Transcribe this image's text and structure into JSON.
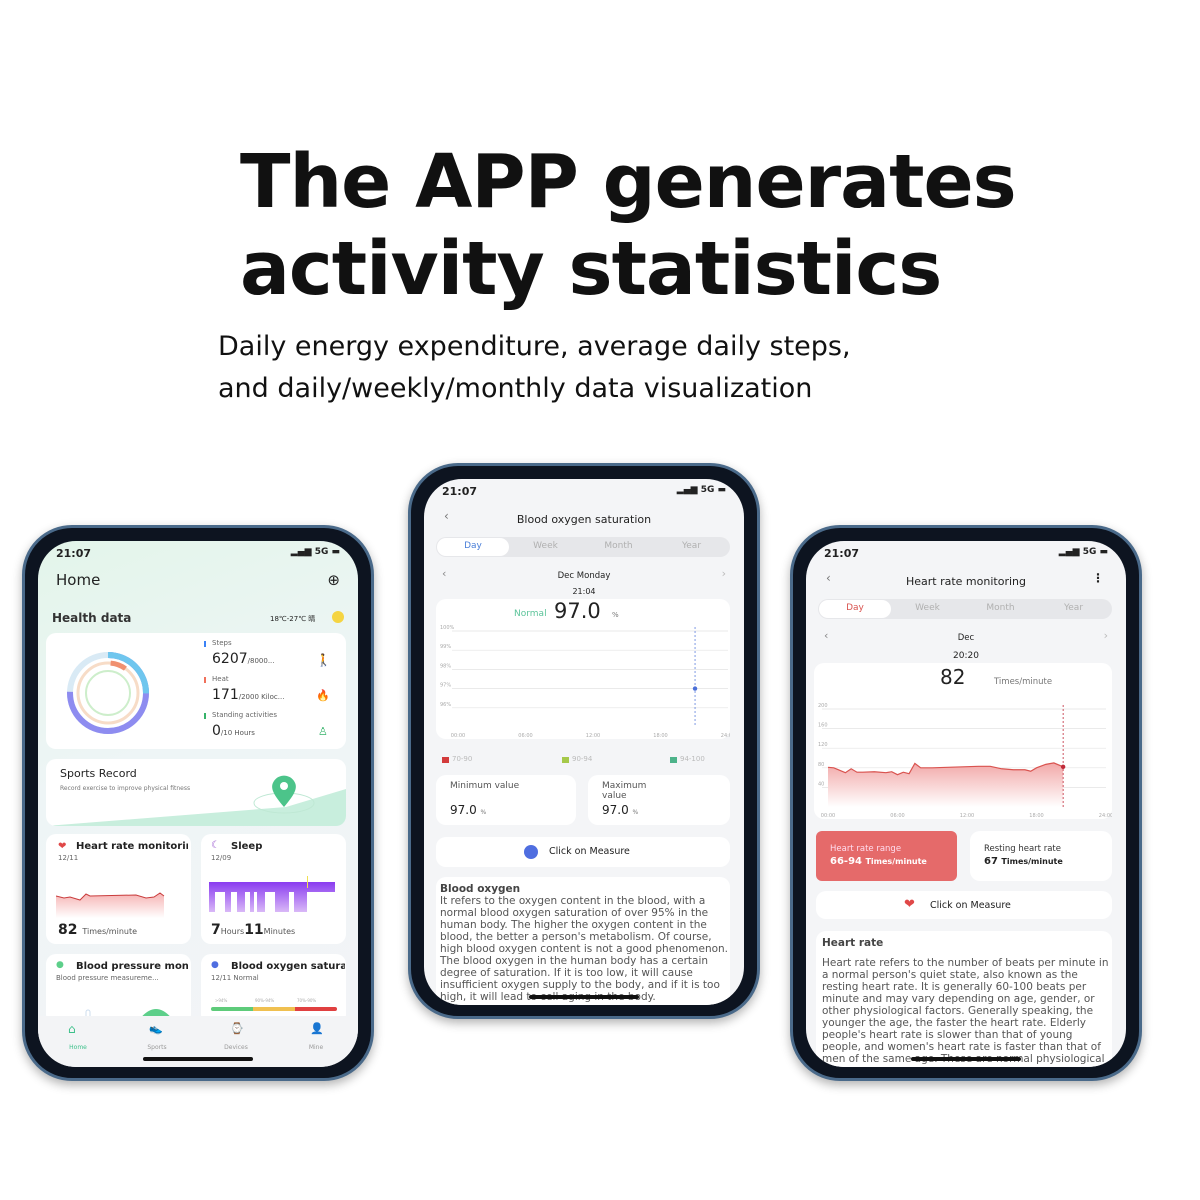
{
  "headline": {
    "line1": "The APP generates",
    "line2": "activity statistics"
  },
  "subheadline": {
    "line1": "Daily energy expenditure, average daily steps,",
    "line2": "and daily/weekly/monthly data visualization"
  },
  "status": {
    "time": "21:07",
    "network": "5G"
  },
  "home": {
    "title": "Home",
    "section": "Health data",
    "weather": "18℃-27℃ 晴",
    "metrics": [
      {
        "label": "Steps",
        "value": "6207",
        "goal": "/8000...",
        "color": "#3b82f6"
      },
      {
        "label": "Heat",
        "value": "171",
        "goal": "/2000 Kiloc...",
        "color": "#f0705a"
      },
      {
        "label": "Standing activities",
        "value": "0",
        "goal": "/10 Hours",
        "color": "#36b36a"
      }
    ],
    "sports": {
      "title": "Sports Record",
      "desc": "Record exercise to improve physical fitness"
    },
    "heart": {
      "title": "Heart rate monitoring",
      "date": "12/11",
      "value": "82",
      "unit": "Times/minute"
    },
    "sleep": {
      "title": "Sleep",
      "date": "12/09",
      "hours": "7",
      "hours_unit": "Hours",
      "minutes": "11",
      "minutes_unit": "Minutes"
    },
    "bp": {
      "title": "Blood pressure monitoring",
      "desc": "Blood pressure measureme..."
    },
    "spo2": {
      "title": "Blood oxygen saturation",
      "desc": "12/11 Normal",
      "ranges": [
        ">94%",
        "90%-94%",
        "70%-90%"
      ]
    },
    "tabs": [
      {
        "label": "Home",
        "active": true
      },
      {
        "label": "Sports"
      },
      {
        "label": "Devices"
      },
      {
        "label": "Mine"
      }
    ]
  },
  "oxygen": {
    "title": "Blood oxygen saturation",
    "periods": [
      "Day",
      "Week",
      "Month",
      "Year"
    ],
    "active_period": "Day",
    "date": "Dec Monday",
    "time": "21:04",
    "status": "Normal",
    "value": "97.0",
    "unit": "%",
    "legend": [
      "70-90",
      "90-94",
      "94-100"
    ],
    "legend_colors": [
      "#d33b3b",
      "#a6c94a",
      "#4db38a"
    ],
    "min_label": "Minimum value",
    "min_value": "97.0",
    "max_label": "Maximum value",
    "max_value": "97.0",
    "measure": "Click on Measure",
    "info_title": "Blood oxygen",
    "info_text": "It refers to the oxygen content in the blood, with a normal blood oxygen saturation of over 95% in the human body. The higher the oxygen content in the blood, the better a person's metabolism. Of course, high blood oxygen content is not a good phenomenon. The blood oxygen in the human body has a certain degree of saturation. If it is too low, it will cause insufficient oxygen supply to the body, and if it is too high, it will lead to cell aging in the body."
  },
  "heartrate": {
    "title": "Heart rate monitoring",
    "periods": [
      "Day",
      "Week",
      "Month",
      "Year"
    ],
    "active_period": "Day",
    "date": "Dec",
    "time": "20:20",
    "value": "82",
    "unit": "Times/minute",
    "range_label": "Heart rate range",
    "range_value": "66-94",
    "range_unit": "Times/minute",
    "resting_label": "Resting heart rate",
    "resting_value": "67",
    "resting_unit": "Times/minute",
    "measure": "Click on Measure",
    "info_title": "Heart rate",
    "info_text": "Heart rate refers to the number of beats per minute in a normal person's quiet state, also known as the resting heart rate. It is generally 60-100 beats per minute and may vary depending on age, gender, or other physiological factors. Generally speaking, the younger the age, the faster the heart rate. Elderly people's heart rate is slower than that of young people, and women's heart rate is faster than that of men of the same age. These are normal physiological phenomena."
  },
  "chart_data": [
    {
      "type": "scatter",
      "ylabels": [
        "100%",
        "99%",
        "98%",
        "97%",
        "96%"
      ],
      "ylim": [
        95,
        100
      ],
      "xlabels": [
        "00:00",
        "06:00",
        "12:00",
        "18:00",
        "24:00"
      ],
      "xlim": [
        0,
        24
      ],
      "points": [
        {
          "x": 21.07,
          "y": 97
        }
      ],
      "grid": true
    },
    {
      "type": "area",
      "ylabels": [
        "200",
        "160",
        "120",
        "80",
        "40"
      ],
      "ylim": [
        0,
        200
      ],
      "xlabels": [
        "00:00",
        "06:00",
        "12:00",
        "18:00",
        "24:00"
      ],
      "xlim": [
        0,
        24
      ],
      "x": [
        0,
        0.5,
        1.5,
        2,
        2.5,
        3,
        4,
        5,
        5.5,
        6,
        6.5,
        7,
        7.5,
        8,
        8.5,
        9,
        13,
        14,
        15,
        16,
        17,
        17.5,
        18,
        18.8,
        19.5,
        20.3
      ],
      "y": [
        81,
        80,
        70,
        78,
        71,
        71,
        72,
        70,
        72,
        66,
        71,
        68,
        89,
        80,
        80,
        80,
        83,
        83,
        78,
        76,
        76,
        73,
        80,
        87,
        90,
        82
      ],
      "color": "#d9534f",
      "grid": true
    }
  ]
}
